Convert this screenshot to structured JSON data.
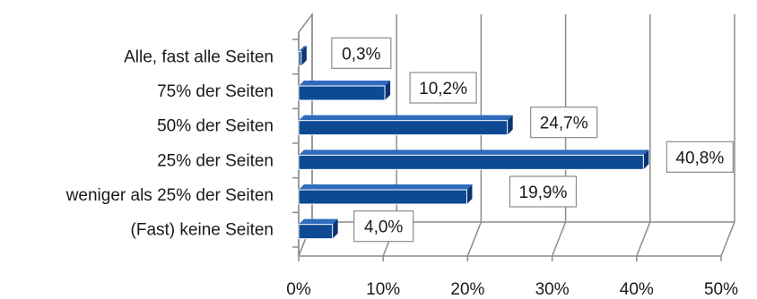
{
  "chart_data": {
    "type": "bar",
    "orientation": "horizontal",
    "style": "3d",
    "categories": [
      "Alle, fast alle Seiten",
      "75% der Seiten",
      "50% der Seiten",
      "25% der Seiten",
      "weniger als 25% der Seiten",
      "(Fast) keine Seiten"
    ],
    "values": [
      0.3,
      10.2,
      24.7,
      40.8,
      19.9,
      4.0
    ],
    "data_labels": [
      "0,3%",
      "10,2%",
      "24,7%",
      "40,8%",
      "19,9%",
      "4,0%"
    ],
    "x_ticks": [
      0,
      10,
      20,
      30,
      40,
      50
    ],
    "x_tick_labels": [
      "0%",
      "10%",
      "20%",
      "30%",
      "40%",
      "50%"
    ],
    "xlim": [
      0,
      50
    ],
    "grid": true,
    "bar_color": "#0d4a93",
    "title": "",
    "xlabel": "",
    "ylabel": ""
  }
}
